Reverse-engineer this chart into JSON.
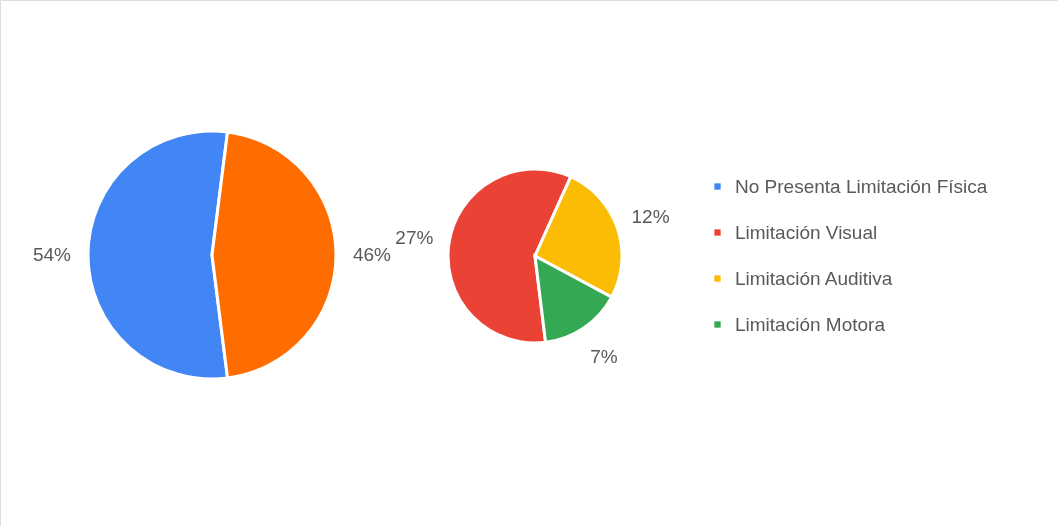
{
  "chart_data": [
    {
      "type": "pie",
      "categories": [
        "No Presenta Limitación Física",
        null
      ],
      "values": [
        54,
        46
      ],
      "colors": [
        "#4285f4",
        "#ff6d01"
      ],
      "value_labels": [
        "54%",
        "46%"
      ],
      "legend": "right"
    },
    {
      "type": "pie",
      "categories": [
        "Limitación Visual",
        "Limitación Auditiva",
        "Limitación Motora"
      ],
      "values": [
        27,
        12,
        7
      ],
      "colors": [
        "#ea4335",
        "#fbbc04",
        "#34a853"
      ],
      "value_labels": [
        "27%",
        "12%",
        "7%"
      ],
      "legend": "right"
    }
  ]
}
